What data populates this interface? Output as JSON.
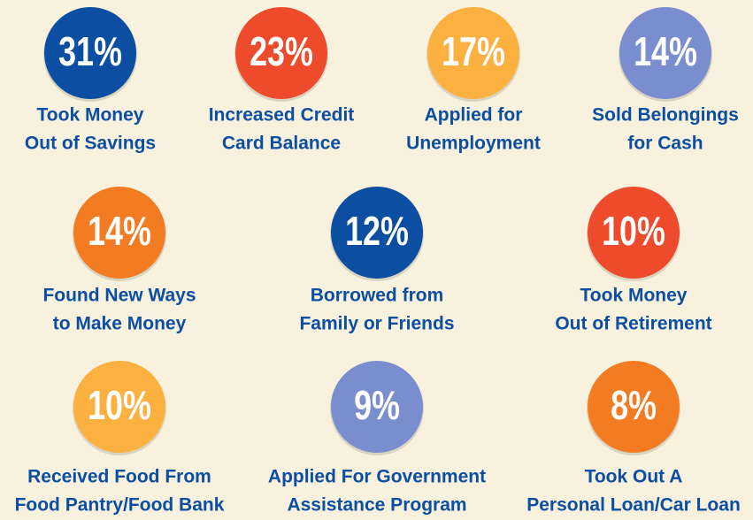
{
  "items": [
    {
      "value_label": "31%",
      "color": "#0b4ea2",
      "label": [
        "Took Money",
        "Out of Savings"
      ]
    },
    {
      "value_label": "23%",
      "color": "#ee4a2c",
      "label": [
        "Increased Credit",
        "Card Balance"
      ]
    },
    {
      "value_label": "17%",
      "color": "#fbb03f",
      "label": [
        "Applied for",
        "Unemployment"
      ]
    },
    {
      "value_label": "14%",
      "color": "#7a8ecf",
      "label": [
        "Sold Belongings",
        "for Cash"
      ]
    },
    {
      "value_label": "14%",
      "color": "#f37c22",
      "label": [
        "Found New Ways",
        "to Make Money"
      ]
    },
    {
      "value_label": "12%",
      "color": "#0b4ea2",
      "label": [
        "Borrowed from",
        "Family or Friends"
      ]
    },
    {
      "value_label": "10%",
      "color": "#ee4a2c",
      "label": [
        "Took Money",
        "Out of Retirement"
      ]
    },
    {
      "value_label": "10%",
      "color": "#fbb03f",
      "label": [
        "Received Food From",
        "Food Pantry/Food Bank"
      ]
    },
    {
      "value_label": "9%",
      "color": "#7a8ecf",
      "label": [
        "Applied For Government",
        "Assistance Program"
      ]
    },
    {
      "value_label": "8%",
      "color": "#f37c22",
      "label": [
        "Took Out A",
        "Personal Loan/Car Loan"
      ]
    }
  ]
}
